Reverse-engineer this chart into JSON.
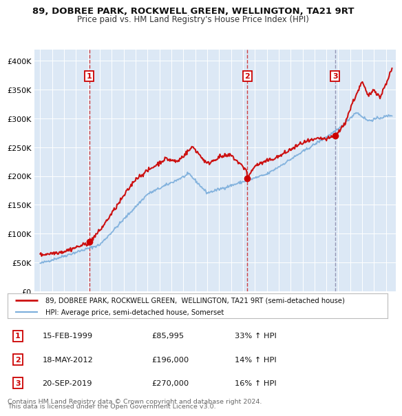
{
  "title1": "89, DOBREE PARK, ROCKWELL GREEN, WELLINGTON, TA21 9RT",
  "title2": "Price paid vs. HM Land Registry's House Price Index (HPI)",
  "bg_color": "#ffffff",
  "plot_bg_color": "#dce8f5",
  "legend_line1": "89, DOBREE PARK, ROCKWELL GREEN,  WELLINGTON, TA21 9RT (semi-detached house)",
  "legend_line2": "HPI: Average price, semi-detached house, Somerset",
  "footer1": "Contains HM Land Registry data © Crown copyright and database right 2024.",
  "footer2": "This data is licensed under the Open Government Licence v3.0.",
  "sales": [
    {
      "num": 1,
      "date": "15-FEB-1999",
      "price": 85995,
      "pct": "33%",
      "dir": "↑",
      "x": 1999.12
    },
    {
      "num": 2,
      "date": "18-MAY-2012",
      "price": 196000,
      "pct": "14%",
      "dir": "↑",
      "x": 2012.38
    },
    {
      "num": 3,
      "date": "20-SEP-2019",
      "price": 270000,
      "pct": "16%",
      "dir": "↑",
      "x": 2019.72
    }
  ],
  "vline_colors_solid": [
    "#cc2222",
    "#cc2222",
    "#8888aa"
  ],
  "sale_marker_color": "#cc0000",
  "hpi_color": "#7aaddb",
  "price_color": "#cc1111",
  "ylim": [
    0,
    420000
  ],
  "xlim": [
    1994.5,
    2024.8
  ],
  "yticks": [
    0,
    50000,
    100000,
    150000,
    200000,
    250000,
    300000,
    350000,
    400000
  ]
}
